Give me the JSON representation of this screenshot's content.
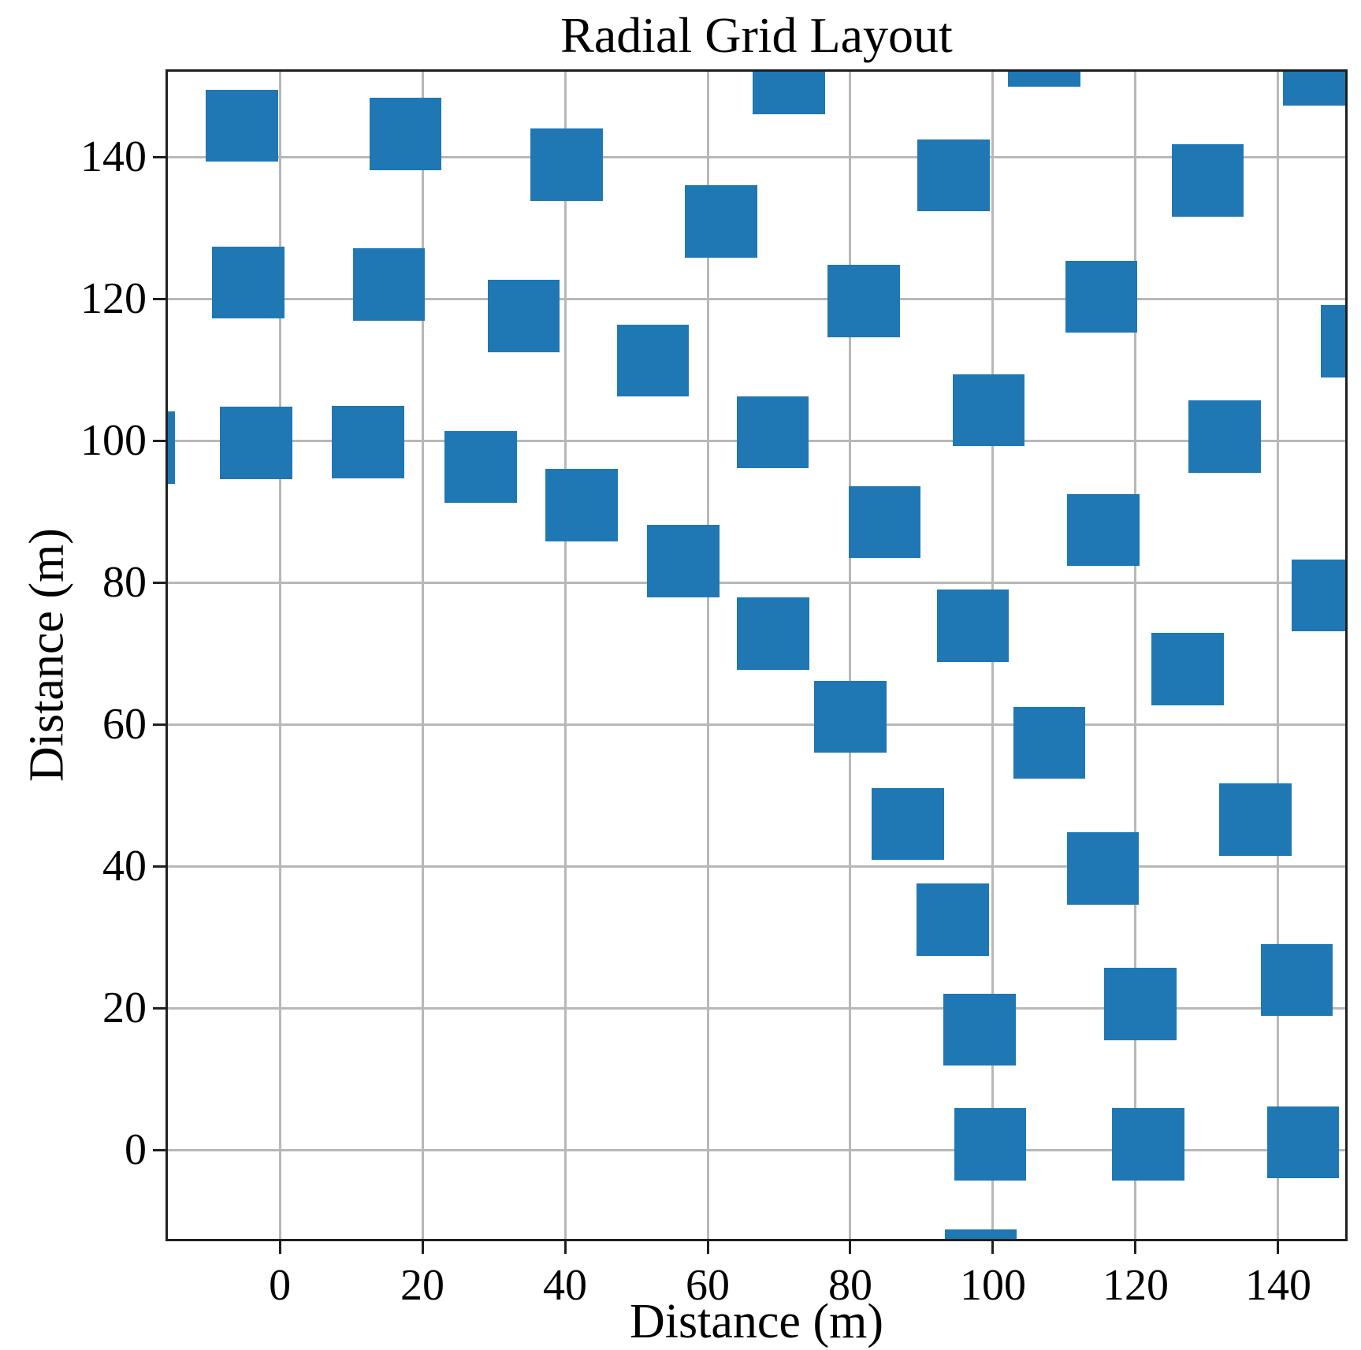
{
  "title": "Radial Grid Layout",
  "axes": {
    "xlabel": "Distance (m)",
    "ylabel": "Distance (m)",
    "x_tick_labels": [
      "0",
      "20",
      "40",
      "60",
      "80",
      "100",
      "120",
      "140"
    ],
    "y_tick_labels": [
      "0",
      "20",
      "40",
      "60",
      "80",
      "100",
      "120",
      "140"
    ],
    "spine_color": "#1f1f1f",
    "grid_color": "#b8b8b8",
    "background_color": "#ffffff"
  },
  "chart_data": {
    "type": "scatter",
    "title": "Radial Grid Layout",
    "xlabel": "Distance (m)",
    "ylabel": "Distance (m)",
    "marker": "square",
    "marker_color": "#1f77b4",
    "marker_size_m": 10.15,
    "grid": true,
    "legend": false,
    "xlim": [
      -15.7,
      149.4
    ],
    "ylim": [
      -12.5,
      152.0
    ],
    "x_ticks": [
      0,
      20,
      40,
      60,
      80,
      100,
      120,
      140
    ],
    "y_ticks": [
      0,
      20,
      40,
      60,
      80,
      100,
      120,
      140
    ],
    "points": [
      [
        -19.8,
        99.0
      ],
      [
        -3.3,
        99.7
      ],
      [
        12.4,
        99.8
      ],
      [
        28.2,
        96.3
      ],
      [
        42.3,
        90.9
      ],
      [
        56.6,
        83.0
      ],
      [
        69.2,
        72.8
      ],
      [
        80.0,
        61.1
      ],
      [
        88.1,
        46.0
      ],
      [
        94.4,
        32.5
      ],
      [
        98.1,
        17.0
      ],
      [
        99.6,
        0.8
      ],
      [
        98.3,
        -16.3
      ],
      [
        -4.4,
        122.3
      ],
      [
        15.3,
        122.0
      ],
      [
        34.2,
        117.6
      ],
      [
        52.3,
        111.3
      ],
      [
        69.1,
        101.2
      ],
      [
        84.8,
        88.5
      ],
      [
        97.2,
        73.9
      ],
      [
        107.9,
        57.4
      ],
      [
        115.4,
        39.7
      ],
      [
        120.7,
        20.6
      ],
      [
        121.8,
        0.8
      ],
      [
        -5.3,
        144.4
      ],
      [
        17.6,
        143.2
      ],
      [
        40.2,
        138.9
      ],
      [
        61.9,
        130.9
      ],
      [
        81.9,
        119.7
      ],
      [
        99.4,
        104.3
      ],
      [
        115.5,
        87.4
      ],
      [
        127.3,
        67.8
      ],
      [
        136.8,
        46.6
      ],
      [
        142.6,
        24.0
      ],
      [
        143.5,
        1.1
      ],
      [
        71.4,
        151.1
      ],
      [
        94.5,
        137.4
      ],
      [
        115.2,
        120.3
      ],
      [
        132.5,
        100.6
      ],
      [
        147.0,
        78.2
      ],
      [
        107.2,
        155.0
      ],
      [
        130.1,
        136.7
      ],
      [
        151.0,
        114.0
      ],
      [
        145.7,
        152.3
      ]
    ]
  }
}
